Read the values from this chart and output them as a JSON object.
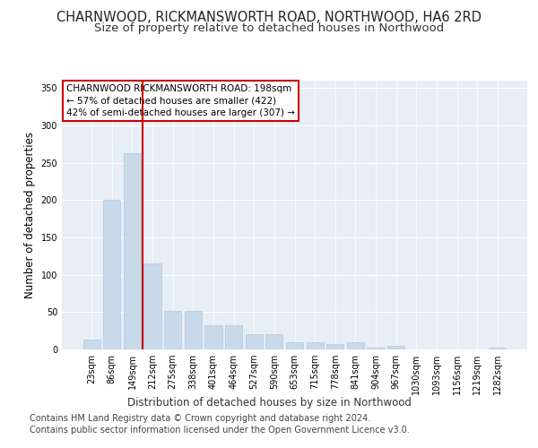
{
  "title1": "CHARNWOOD, RICKMANSWORTH ROAD, NORTHWOOD, HA6 2RD",
  "title2": "Size of property relative to detached houses in Northwood",
  "xlabel": "Distribution of detached houses by size in Northwood",
  "ylabel": "Number of detached properties",
  "categories": [
    "23sqm",
    "86sqm",
    "149sqm",
    "212sqm",
    "275sqm",
    "338sqm",
    "401sqm",
    "464sqm",
    "527sqm",
    "590sqm",
    "653sqm",
    "715sqm",
    "778sqm",
    "841sqm",
    "904sqm",
    "967sqm",
    "1030sqm",
    "1093sqm",
    "1156sqm",
    "1219sqm",
    "1282sqm"
  ],
  "values": [
    13,
    200,
    263,
    115,
    52,
    52,
    33,
    33,
    20,
    20,
    10,
    10,
    7,
    10,
    3,
    5,
    0,
    0,
    0,
    0,
    3
  ],
  "bar_color": "#c8d9ea",
  "bar_edge_color": "#afc8dc",
  "highlight_line_color": "#cc0000",
  "annotation_text": "CHARNWOOD RICKMANSWORTH ROAD: 198sqm\n← 57% of detached houses are smaller (422)\n42% of semi-detached houses are larger (307) →",
  "annotation_box_color": "#ffffff",
  "annotation_box_edge": "#cc0000",
  "ylim": [
    0,
    360
  ],
  "yticks": [
    0,
    50,
    100,
    150,
    200,
    250,
    300,
    350
  ],
  "footnote1": "Contains HM Land Registry data © Crown copyright and database right 2024.",
  "footnote2": "Contains public sector information licensed under the Open Government Licence v3.0.",
  "plot_bg_color": "#e8eef5",
  "title_fontsize": 10.5,
  "subtitle_fontsize": 9.5,
  "axis_label_fontsize": 8.5,
  "tick_fontsize": 7,
  "footnote_fontsize": 7,
  "annotation_fontsize": 7.5
}
